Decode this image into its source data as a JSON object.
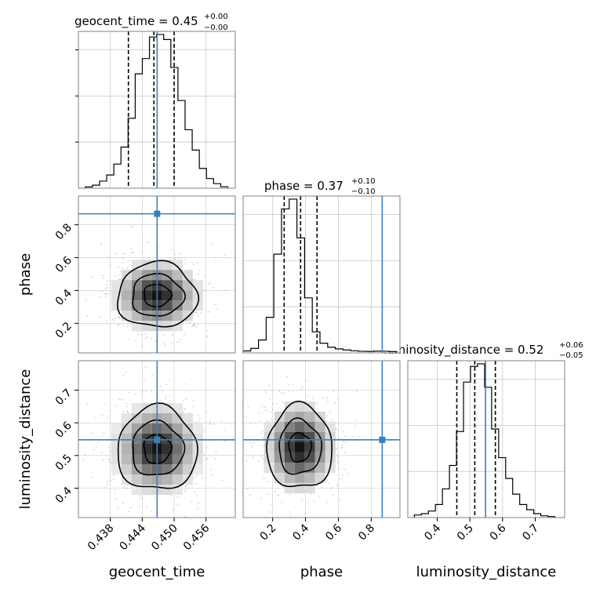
{
  "colors": {
    "truth": "#3b7fc0",
    "hist": "#000000",
    "grid": "#c8c8c8",
    "points": "#9a9a9a"
  },
  "chart_data": {
    "type": "corner",
    "parameters": [
      "geocent_time",
      "phase",
      "luminosity_distance"
    ],
    "truths": {
      "geocent_time": 0.4468,
      "phase": 0.867,
      "luminosity_distance": 0.548
    },
    "ranges": {
      "geocent_time": [
        0.432,
        0.4615
      ],
      "phase": [
        0.02,
        0.975
      ],
      "luminosity_distance": [
        0.31,
        0.79
      ]
    },
    "ticks": {
      "geocent_time": [
        "0.438",
        "0.444",
        "0.450",
        "0.456"
      ],
      "phase": [
        "0.2",
        "0.4",
        "0.6",
        "0.8"
      ],
      "luminosity_distance": [
        "0.4",
        "0.5",
        "0.6",
        "0.7"
      ]
    },
    "titles": [
      {
        "param": "geocent_time",
        "main": "geocent_time = 0.45",
        "plus": "+0.00",
        "minus": "−0.00"
      },
      {
        "param": "phase",
        "main": "phase = 0.37",
        "plus": "+0.10",
        "minus": "−0.10"
      },
      {
        "param": "luminosity_distance",
        "main": "luminosity_distance = 0.52",
        "plus": "+0.06",
        "minus": "−0.05"
      }
    ],
    "axis_labels": {
      "x": [
        "geocent_time",
        "phase",
        "luminosity_distance"
      ],
      "y": [
        "phase",
        "luminosity_distance"
      ]
    },
    "quantile_lines": {
      "geocent_time": [
        0.4414,
        0.4462,
        0.45
      ],
      "phase": [
        0.27,
        0.37,
        0.47
      ],
      "luminosity_distance": [
        0.46,
        0.515,
        0.578
      ]
    },
    "histograms": {
      "geocent_time": {
        "bin_start": 0.4333,
        "bin_width": 0.00134,
        "counts": [
          0.5,
          1.2,
          2.8,
          5.2,
          9.5,
          16.2,
          27.5,
          45.0,
          51.0,
          59.5,
          60.5,
          58.5,
          47.5,
          34.5,
          23.0,
          15.0,
          7.8,
          3.8,
          1.8,
          0.6
        ]
      },
      "phase": {
        "bin_start": 0.02,
        "bin_width": 0.0468,
        "counts": [
          1.2,
          2.8,
          8.0,
          22.0,
          61.0,
          89.0,
          95.0,
          71.0,
          34.0,
          13.0,
          6.0,
          3.5,
          2.5,
          1.8,
          1.3,
          1.0,
          0.9,
          1.1,
          1.0,
          0.8
        ]
      },
      "luminosity_distance": {
        "bin_start": 0.33,
        "bin_width": 0.0215,
        "counts": [
          1.0,
          1.5,
          2.5,
          5.0,
          11.0,
          20.0,
          33.0,
          52.0,
          58.0,
          59.0,
          50.0,
          34.0,
          23.0,
          15.0,
          9.0,
          5.0,
          3.0,
          1.5,
          0.7,
          0.4
        ]
      }
    },
    "joint_2d": [
      {
        "x": "geocent_time",
        "y": "phase",
        "center": [
          0.4468,
          0.37
        ],
        "sigma": [
          0.0032,
          0.085
        ],
        "levels": [
          0.15,
          0.45,
          0.8
        ]
      },
      {
        "x": "geocent_time",
        "y": "luminosity_distance",
        "center": [
          0.4468,
          0.52
        ],
        "sigma": [
          0.0032,
          0.055
        ],
        "levels": [
          0.15,
          0.45,
          0.8
        ]
      },
      {
        "x": "phase",
        "y": "luminosity_distance",
        "center": [
          0.365,
          0.525
        ],
        "sigma": [
          0.085,
          0.055
        ],
        "levels": [
          0.15,
          0.45,
          0.8
        ]
      }
    ],
    "grid": true
  }
}
